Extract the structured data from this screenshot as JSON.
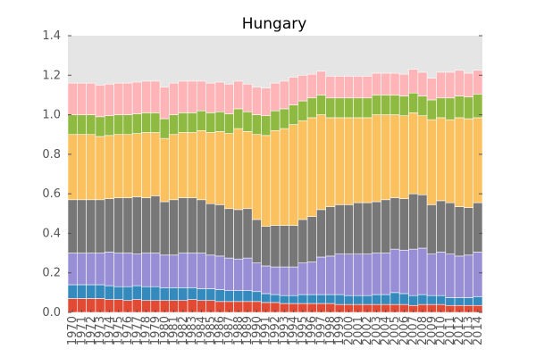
{
  "chart_data": {
    "type": "bar",
    "stacked": true,
    "title": "Hungary",
    "xlabel": "",
    "ylabel": "",
    "ylim": [
      0,
      1.4
    ],
    "yticks": [
      "0.0",
      "0.2",
      "0.4",
      "0.6",
      "0.8",
      "1.0",
      "1.2",
      "1.4"
    ],
    "grid": false,
    "legend": "none",
    "background": "#e5e5e5",
    "categories": [
      "1970",
      "1971",
      "1972",
      "1973",
      "1974",
      "1975",
      "1976",
      "1977",
      "1978",
      "1979",
      "1980",
      "1981",
      "1982",
      "1983",
      "1984",
      "1985",
      "1986",
      "1987",
      "1988",
      "1989",
      "1990",
      "1991",
      "1992",
      "1993",
      "1994",
      "1995",
      "1996",
      "1997",
      "1998",
      "1999",
      "2000",
      "2001",
      "2002",
      "2003",
      "2004",
      "2005",
      "2006",
      "2007",
      "2008",
      "2009",
      "2010",
      "2011",
      "2012",
      "2013",
      "2014"
    ],
    "series": [
      {
        "color": "#e24a33",
        "values": [
          0.07,
          0.07,
          0.07,
          0.07,
          0.065,
          0.065,
          0.06,
          0.065,
          0.06,
          0.06,
          0.06,
          0.06,
          0.06,
          0.065,
          0.06,
          0.06,
          0.055,
          0.055,
          0.055,
          0.055,
          0.055,
          0.05,
          0.05,
          0.045,
          0.045,
          0.045,
          0.045,
          0.045,
          0.045,
          0.04,
          0.04,
          0.04,
          0.04,
          0.04,
          0.04,
          0.04,
          0.04,
          0.035,
          0.04,
          0.04,
          0.04,
          0.035,
          0.035,
          0.035,
          0.035
        ]
      },
      {
        "color": "#348abd",
        "values": [
          0.07,
          0.07,
          0.07,
          0.07,
          0.07,
          0.065,
          0.07,
          0.07,
          0.07,
          0.07,
          0.065,
          0.065,
          0.065,
          0.06,
          0.06,
          0.06,
          0.06,
          0.055,
          0.055,
          0.055,
          0.05,
          0.045,
          0.04,
          0.04,
          0.04,
          0.045,
          0.045,
          0.045,
          0.045,
          0.05,
          0.045,
          0.045,
          0.045,
          0.05,
          0.05,
          0.06,
          0.055,
          0.05,
          0.05,
          0.045,
          0.045,
          0.04,
          0.04,
          0.04,
          0.045
        ]
      },
      {
        "color": "#988ed5",
        "values": [
          0.16,
          0.16,
          0.16,
          0.16,
          0.17,
          0.17,
          0.17,
          0.16,
          0.17,
          0.17,
          0.165,
          0.165,
          0.175,
          0.175,
          0.18,
          0.17,
          0.17,
          0.165,
          0.16,
          0.165,
          0.145,
          0.14,
          0.14,
          0.145,
          0.145,
          0.16,
          0.165,
          0.19,
          0.195,
          0.205,
          0.21,
          0.21,
          0.21,
          0.21,
          0.21,
          0.22,
          0.22,
          0.235,
          0.235,
          0.21,
          0.22,
          0.22,
          0.21,
          0.215,
          0.225
        ]
      },
      {
        "color": "#777777",
        "values": [
          0.27,
          0.27,
          0.27,
          0.27,
          0.27,
          0.28,
          0.28,
          0.29,
          0.28,
          0.29,
          0.27,
          0.28,
          0.28,
          0.28,
          0.27,
          0.26,
          0.26,
          0.25,
          0.25,
          0.25,
          0.22,
          0.2,
          0.21,
          0.21,
          0.21,
          0.22,
          0.23,
          0.24,
          0.25,
          0.25,
          0.25,
          0.26,
          0.26,
          0.26,
          0.27,
          0.26,
          0.26,
          0.28,
          0.27,
          0.25,
          0.26,
          0.26,
          0.25,
          0.24,
          0.25
        ]
      },
      {
        "color": "#fbc15e",
        "values": [
          0.33,
          0.33,
          0.33,
          0.32,
          0.32,
          0.32,
          0.32,
          0.32,
          0.33,
          0.32,
          0.32,
          0.33,
          0.33,
          0.33,
          0.35,
          0.36,
          0.37,
          0.38,
          0.41,
          0.39,
          0.43,
          0.46,
          0.48,
          0.49,
          0.51,
          0.5,
          0.5,
          0.48,
          0.45,
          0.44,
          0.44,
          0.43,
          0.43,
          0.44,
          0.43,
          0.42,
          0.42,
          0.41,
          0.4,
          0.43,
          0.42,
          0.42,
          0.45,
          0.45,
          0.43
        ]
      },
      {
        "color": "#8eba42",
        "values": [
          0.1,
          0.1,
          0.1,
          0.1,
          0.1,
          0.1,
          0.1,
          0.1,
          0.1,
          0.1,
          0.1,
          0.1,
          0.1,
          0.1,
          0.1,
          0.1,
          0.1,
          0.1,
          0.1,
          0.1,
          0.1,
          0.1,
          0.1,
          0.1,
          0.1,
          0.1,
          0.1,
          0.1,
          0.1,
          0.1,
          0.1,
          0.1,
          0.1,
          0.1,
          0.1,
          0.1,
          0.1,
          0.1,
          0.1,
          0.1,
          0.1,
          0.11,
          0.11,
          0.11,
          0.12
        ]
      },
      {
        "color": "#ffb5b8",
        "values": [
          0.16,
          0.16,
          0.16,
          0.16,
          0.16,
          0.16,
          0.16,
          0.16,
          0.16,
          0.16,
          0.16,
          0.16,
          0.16,
          0.16,
          0.15,
          0.15,
          0.15,
          0.15,
          0.14,
          0.14,
          0.14,
          0.14,
          0.14,
          0.14,
          0.14,
          0.13,
          0.12,
          0.12,
          0.11,
          0.11,
          0.11,
          0.11,
          0.11,
          0.11,
          0.11,
          0.11,
          0.11,
          0.12,
          0.12,
          0.11,
          0.13,
          0.13,
          0.13,
          0.12,
          0.12
        ]
      }
    ]
  }
}
